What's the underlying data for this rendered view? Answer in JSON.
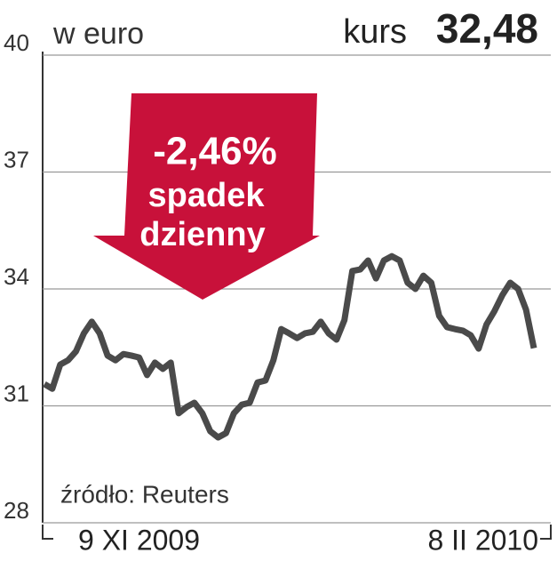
{
  "chart_data": {
    "type": "line",
    "subtitle": "w euro",
    "price_caption": "kurs",
    "price": "32,48",
    "annotation": [
      "-2,46%",
      "spadek",
      "dzienny"
    ],
    "source": "źródło: Reuters",
    "categories": [
      "9 XI 2009",
      null,
      null,
      null,
      null,
      null,
      null,
      null,
      null,
      null,
      null,
      null,
      null,
      null,
      null,
      null,
      null,
      null,
      null,
      null,
      null,
      null,
      null,
      null,
      null,
      null,
      null,
      null,
      null,
      null,
      null,
      null,
      null,
      null,
      null,
      null,
      null,
      null,
      null,
      null,
      null,
      null,
      null,
      null,
      null,
      null,
      null,
      null,
      null,
      null,
      null,
      null,
      null,
      null,
      null,
      null,
      null,
      null,
      null,
      null,
      null,
      null,
      "8 II 2010"
    ],
    "series": [
      {
        "name": "kurs",
        "color": "#4a4a4a",
        "values": [
          31.56,
          31.44,
          32.06,
          32.17,
          32.4,
          32.86,
          33.16,
          32.86,
          32.29,
          32.17,
          32.33,
          32.29,
          32.24,
          31.79,
          32.11,
          31.95,
          32.11,
          30.81,
          30.97,
          31.08,
          30.81,
          30.35,
          30.19,
          30.3,
          30.81,
          31.03,
          31.08,
          31.6,
          31.65,
          32.17,
          32.97,
          32.86,
          32.74,
          32.86,
          32.9,
          33.16,
          32.86,
          32.7,
          33.2,
          34.46,
          34.5,
          34.73,
          34.27,
          34.73,
          34.84,
          34.73,
          34.16,
          34.0,
          34.34,
          34.16,
          33.31,
          33.02,
          32.97,
          32.93,
          32.81,
          32.47,
          33.09,
          33.43,
          33.84,
          34.16,
          34.0,
          33.47,
          32.48
        ]
      }
    ],
    "ylim": [
      28,
      40
    ],
    "yticks": [
      28,
      31,
      34,
      37,
      40
    ],
    "grid": true
  }
}
